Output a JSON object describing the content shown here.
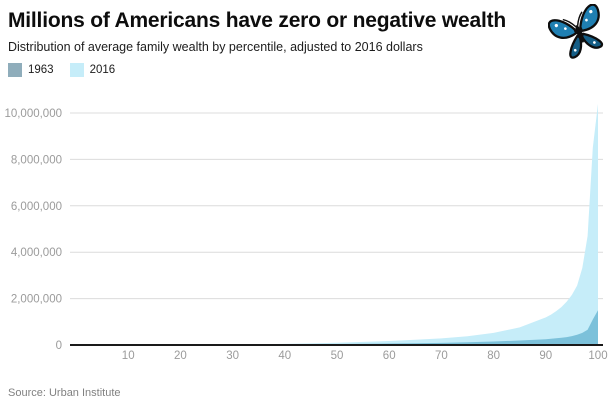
{
  "header": {
    "title": "Millions of Americans have zero or negative wealth",
    "subtitle": "Distribution of average family wealth by percentile, adjusted to 2016 dollars",
    "logo_icon": "butterfly-icon"
  },
  "footer": {
    "source": "Source: Urban Institute"
  },
  "colors": {
    "series_1963_legend": "#8fadbb",
    "series_1963_area": "#7cc1da",
    "series_2016": "#c6edf9",
    "axis_line": "#1a1a1a",
    "gridline": "#dcdcdc",
    "tick_text": "#9b9b9b"
  },
  "chart_data": {
    "type": "area",
    "title": "Millions of Americans have zero or negative wealth",
    "subtitle": "Distribution of average family wealth by percentile, adjusted to 2016 dollars",
    "xlabel": "",
    "ylabel": "",
    "xlim": [
      0,
      100
    ],
    "ylim": [
      0,
      10000000
    ],
    "grid": true,
    "legend_position": "top-left",
    "xticks": [
      10,
      20,
      30,
      40,
      50,
      60,
      70,
      80,
      90,
      100
    ],
    "yticks": [
      {
        "value": 0,
        "label": "0"
      },
      {
        "value": 2000000,
        "label": "2,000,000"
      },
      {
        "value": 4000000,
        "label": "4,000,000"
      },
      {
        "value": 6000000,
        "label": "6,000,000"
      },
      {
        "value": 8000000,
        "label": "8,000,000"
      },
      {
        "value": 10000000,
        "label": "10,000,000"
      }
    ],
    "series": [
      {
        "name": "1963",
        "legend_color": "#8fadbb",
        "area_color": "#7cc1da",
        "points": [
          [
            0,
            -500
          ],
          [
            1,
            -1000
          ],
          [
            5,
            0
          ],
          [
            10,
            500
          ],
          [
            15,
            1500
          ],
          [
            20,
            3000
          ],
          [
            25,
            5500
          ],
          [
            30,
            9000
          ],
          [
            35,
            14000
          ],
          [
            40,
            21000
          ],
          [
            45,
            30000
          ],
          [
            50,
            42000
          ],
          [
            55,
            52000
          ],
          [
            60,
            64000
          ],
          [
            65,
            77000
          ],
          [
            70,
            92000
          ],
          [
            75,
            118000
          ],
          [
            80,
            152000
          ],
          [
            85,
            195000
          ],
          [
            90,
            252000
          ],
          [
            91,
            268000
          ],
          [
            92,
            288000
          ],
          [
            93,
            310000
          ],
          [
            94,
            340000
          ],
          [
            95,
            385000
          ],
          [
            96,
            440000
          ],
          [
            97,
            520000
          ],
          [
            98,
            660000
          ],
          [
            99,
            1100000
          ],
          [
            100,
            1500000
          ]
        ]
      },
      {
        "name": "2016",
        "legend_color": "#c6edf9",
        "area_color": "#c6edf9",
        "points": [
          [
            0,
            -8000
          ],
          [
            1,
            -13000
          ],
          [
            5,
            -2000
          ],
          [
            10,
            200
          ],
          [
            15,
            1500
          ],
          [
            20,
            5000
          ],
          [
            25,
            11000
          ],
          [
            30,
            19000
          ],
          [
            35,
            32000
          ],
          [
            40,
            49000
          ],
          [
            45,
            71000
          ],
          [
            50,
            97000
          ],
          [
            55,
            132000
          ],
          [
            60,
            174000
          ],
          [
            65,
            224000
          ],
          [
            70,
            286000
          ],
          [
            75,
            378000
          ],
          [
            80,
            522000
          ],
          [
            85,
            760000
          ],
          [
            90,
            1190000
          ],
          [
            91,
            1310000
          ],
          [
            92,
            1460000
          ],
          [
            93,
            1640000
          ],
          [
            94,
            1870000
          ],
          [
            95,
            2160000
          ],
          [
            96,
            2560000
          ],
          [
            97,
            3320000
          ],
          [
            98,
            4700000
          ],
          [
            99,
            8500000
          ],
          [
            100,
            10400000
          ]
        ]
      }
    ],
    "source": "Source: Urban Institute"
  }
}
